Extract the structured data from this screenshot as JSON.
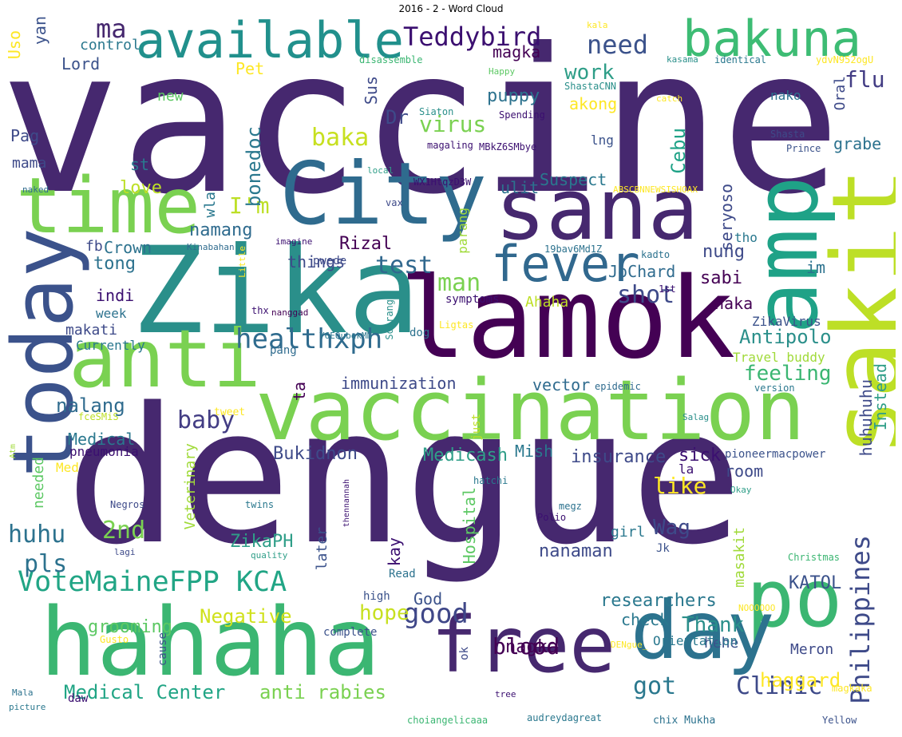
{
  "title": "2016 - 2 - Word Cloud",
  "words": [
    {
      "text": "vaccine",
      "color": "#46286f"
    },
    {
      "text": "dengue",
      "color": "#46286f"
    },
    {
      "text": "lamok",
      "color": "#440154"
    },
    {
      "text": "Zika",
      "color": "#2a8f8a"
    },
    {
      "text": "hahaha",
      "color": "#3bb672"
    },
    {
      "text": "vaccination",
      "color": "#7ad151"
    },
    {
      "text": "City",
      "color": "#2f6b8e"
    },
    {
      "text": "sana",
      "color": "#46286f"
    },
    {
      "text": "sakit",
      "color": "#bddf26"
    },
    {
      "text": "anti",
      "color": "#7ad151"
    },
    {
      "text": "time",
      "color": "#7ad151"
    },
    {
      "text": "today",
      "color": "#3b528b"
    },
    {
      "text": "amp",
      "color": "#1fa287"
    },
    {
      "text": "po",
      "color": "#3bb672"
    },
    {
      "text": "day",
      "color": "#2c728e"
    },
    {
      "text": "free",
      "color": "#46286f"
    },
    {
      "text": "available",
      "color": "#21908c"
    },
    {
      "text": "bakuna",
      "color": "#3dbc74"
    },
    {
      "text": "fever",
      "color": "#31688e"
    },
    {
      "text": "healthxph",
      "color": "#2f6b8e"
    },
    {
      "text": "VoteMaineFPP KCA",
      "color": "#21a585"
    },
    {
      "text": "Teddybird",
      "color": "#3b0f70"
    },
    {
      "text": "Clinic",
      "color": "#3e4a89"
    },
    {
      "text": "Philippines",
      "color": "#3e4a89"
    },
    {
      "text": "good",
      "color": "#3f4788"
    },
    {
      "text": "got",
      "color": "#2a788e"
    },
    {
      "text": "baby",
      "color": "#433d84"
    },
    {
      "text": "test",
      "color": "#31688e"
    },
    {
      "text": "need",
      "color": "#3b528b"
    },
    {
      "text": "work",
      "color": "#2f9e88"
    },
    {
      "text": "virus",
      "color": "#7ad151"
    },
    {
      "text": "blood",
      "color": "#440154"
    },
    {
      "text": "Medical Center",
      "color": "#21a585"
    },
    {
      "text": "anti rabies",
      "color": "#7ad151"
    },
    {
      "text": "Negative",
      "color": "#d0e11c"
    },
    {
      "text": "Thank",
      "color": "#2a8f8a"
    },
    {
      "text": "ma",
      "color": "#46286f"
    },
    {
      "text": "flu",
      "color": "#433d84"
    },
    {
      "text": "baka",
      "color": "#c7e020"
    },
    {
      "text": "man",
      "color": "#7ad151"
    },
    {
      "text": "shot",
      "color": "#3e4a89"
    },
    {
      "text": "hope",
      "color": "#c7e020"
    },
    {
      "text": "2nd",
      "color": "#7ad151"
    },
    {
      "text": "huhu",
      "color": "#2c728e"
    },
    {
      "text": "pls",
      "color": "#2c728e"
    },
    {
      "text": "Wag",
      "color": "#3e4a89"
    },
    {
      "text": "like",
      "color": "#fde725"
    },
    {
      "text": "Antipolo",
      "color": "#2a8f8a"
    },
    {
      "text": "feeling",
      "color": "#3bb672"
    },
    {
      "text": "haggard",
      "color": "#fde725"
    },
    {
      "text": "I'm",
      "color": "#bddf26"
    },
    {
      "text": "sabi",
      "color": "#440154"
    },
    {
      "text": "puppy",
      "color": "#2c728e"
    },
    {
      "text": "nung",
      "color": "#3e4a89"
    },
    {
      "text": "nalang",
      "color": "#2f6b8e"
    },
    {
      "text": "Rizal",
      "color": "#440154"
    },
    {
      "text": "Crown",
      "color": "#2c728e"
    },
    {
      "text": "tong",
      "color": "#2c728e"
    },
    {
      "text": "namang",
      "color": "#2f6b8e"
    },
    {
      "text": "nagka",
      "color": "#440154"
    },
    {
      "text": "grabe",
      "color": "#2c728e"
    },
    {
      "text": "Cebu",
      "color": "#1fa287"
    },
    {
      "text": "bonedoc",
      "color": "#2a788e"
    },
    {
      "text": "researchers",
      "color": "#2a788e"
    },
    {
      "text": "KATOL",
      "color": "#3b528b"
    },
    {
      "text": "check",
      "color": "#2a788e"
    },
    {
      "text": "Medicash",
      "color": "#2f9e88"
    },
    {
      "text": "insurance",
      "color": "#3e4a89"
    },
    {
      "text": "sick",
      "color": "#3b0f70"
    },
    {
      "text": "Bukidnon",
      "color": "#3e4a89"
    },
    {
      "text": "grooming",
      "color": "#5cc863"
    },
    {
      "text": "nanaman",
      "color": "#3e4a89"
    },
    {
      "text": "ZikaPH",
      "color": "#2f9e88"
    },
    {
      "text": "God",
      "color": "#3b528b"
    },
    {
      "text": "Mish",
      "color": "#2a788e"
    },
    {
      "text": "Medical",
      "color": "#2a788e"
    },
    {
      "text": "Dr",
      "color": "#3e4a89"
    },
    {
      "text": "ulit",
      "color": "#2c728e"
    },
    {
      "text": "Suspect",
      "color": "#2a788e"
    },
    {
      "text": "love",
      "color": "#bddf26"
    },
    {
      "text": "JoChard",
      "color": "#2f6b8e"
    },
    {
      "text": "things",
      "color": "#3e4a89"
    },
    {
      "text": "immunization",
      "color": "#3e4a89"
    },
    {
      "text": "vector",
      "color": "#2f6b8e"
    },
    {
      "text": "akong",
      "color": "#fde725"
    },
    {
      "text": "Ahaha",
      "color": "#bddf26"
    },
    {
      "text": "masakit",
      "color": "#a0da39"
    },
    {
      "text": "Instead",
      "color": "#2f9e88"
    },
    {
      "text": "huhuhuhu",
      "color": "#3e4a89"
    },
    {
      "text": "room",
      "color": "#3e4a89"
    },
    {
      "text": "hehe",
      "color": "#3b528b"
    },
    {
      "text": "Hospital",
      "color": "#5cc863"
    },
    {
      "text": "kay",
      "color": "#3b0f70"
    },
    {
      "text": "Veterinary",
      "color": "#a0da39"
    },
    {
      "text": "needed",
      "color": "#5cc863"
    },
    {
      "text": "later",
      "color": "#3b528b"
    },
    {
      "text": "girl",
      "color": "#2a788e"
    },
    {
      "text": "Meron",
      "color": "#3e4a89"
    },
    {
      "text": "Orientation",
      "color": "#2a788e"
    },
    {
      "text": "magka",
      "color": "#440154"
    },
    {
      "text": "control",
      "color": "#2a788e"
    },
    {
      "text": "Lord",
      "color": "#3b528b"
    },
    {
      "text": "new",
      "color": "#5cc863"
    },
    {
      "text": "Pag",
      "color": "#3e4a89"
    },
    {
      "text": "mama",
      "color": "#3e4a89"
    },
    {
      "text": "st",
      "color": "#2a788e"
    },
    {
      "text": "Pet",
      "color": "#fde725"
    },
    {
      "text": "yan",
      "color": "#3b528b"
    },
    {
      "text": "Uso",
      "color": "#fde725"
    },
    {
      "text": "Sus",
      "color": "#3e4a89"
    },
    {
      "text": "wla",
      "color": "#2a788e"
    },
    {
      "text": "fb",
      "color": "#3e4a89"
    },
    {
      "text": "indi",
      "color": "#3b0f70"
    },
    {
      "text": "makati",
      "color": "#3e4a89"
    },
    {
      "text": "week",
      "color": "#2c728e"
    },
    {
      "text": "Currently",
      "color": "#2a788e"
    },
    {
      "text": "ta",
      "color": "#440154"
    },
    {
      "text": "pneumonia",
      "color": "#3b0f70"
    },
    {
      "text": "Med",
      "color": "#fde725"
    },
    {
      "text": "parang",
      "color": "#a0da39"
    },
    {
      "text": "seryoso",
      "color": "#3e4a89"
    },
    {
      "text": "tho",
      "color": "#2a788e"
    },
    {
      "text": "im",
      "color": "#2c728e"
    },
    {
      "text": "naka",
      "color": "#440154"
    },
    {
      "text": "ZikaVirus",
      "color": "#3b528b"
    },
    {
      "text": "Travel buddy",
      "color": "#a0da39"
    },
    {
      "text": "Oral",
      "color": "#3e4a89"
    },
    {
      "text": "nako",
      "color": "#2c728e"
    },
    {
      "text": "lng",
      "color": "#3b528b"
    },
    {
      "text": "la",
      "color": "#3b0f70"
    },
    {
      "text": "pioneermacpower",
      "color": "#3b528b"
    },
    {
      "text": "epidemic",
      "color": "#2f6b8e"
    },
    {
      "text": "version",
      "color": "#2a788e"
    },
    {
      "text": "symptoms",
      "color": "#3b0f70"
    },
    {
      "text": "pwede",
      "color": "#3e4a89"
    },
    {
      "text": "Siaton",
      "color": "#2a8f8a"
    },
    {
      "text": "Spending",
      "color": "#3b0f70"
    },
    {
      "text": "magaling",
      "color": "#3b0f70"
    },
    {
      "text": "MBkZ6SMbye",
      "color": "#3b0f70"
    },
    {
      "text": "WX1HtqzD3W",
      "color": "#3b0f70"
    },
    {
      "text": "ABSCBNNEWSISHOAX",
      "color": "#fde725"
    },
    {
      "text": "vax",
      "color": "#3e4a89"
    },
    {
      "text": "imagine",
      "color": "#3b0f70"
    },
    {
      "text": "Kinabahan",
      "color": "#2f6b8e"
    },
    {
      "text": "19bav6Md1Z",
      "color": "#2c728e"
    },
    {
      "text": "kadto",
      "color": "#2c728e"
    },
    {
      "text": "1st",
      "color": "#3b0f70"
    },
    {
      "text": "thx",
      "color": "#3b0f70"
    },
    {
      "text": "nanggad",
      "color": "#440154"
    },
    {
      "text": "Y6EQubekMN",
      "color": "#2a788e"
    },
    {
      "text": "Ligtas",
      "color": "#fde725"
    },
    {
      "text": "Sobrang",
      "color": "#2a8f8a"
    },
    {
      "text": "dog",
      "color": "#2c728e"
    },
    {
      "text": "pang",
      "color": "#2f6b8e"
    },
    {
      "text": "just",
      "color": "#bddf26"
    },
    {
      "text": "tweet",
      "color": "#fde725"
    },
    {
      "text": "Atm",
      "color": "#a0da39"
    },
    {
      "text": "fceSMiS",
      "color": "#bddf26"
    },
    {
      "text": "Salag",
      "color": "#2a8f8a"
    },
    {
      "text": "Little",
      "color": "#fde725"
    },
    {
      "text": "hatchi",
      "color": "#2a788e"
    },
    {
      "text": "megz",
      "color": "#2c728e"
    },
    {
      "text": "twins",
      "color": "#2a788e"
    },
    {
      "text": "Negros",
      "color": "#3e4a89"
    },
    {
      "text": "thennannah",
      "color": "#3b0f70"
    },
    {
      "text": "Polio",
      "color": "#3b0f70"
    },
    {
      "text": "lagi",
      "color": "#3e4a89"
    },
    {
      "text": "quality",
      "color": "#2f9e88"
    },
    {
      "text": "Read",
      "color": "#2c728e"
    },
    {
      "text": "high",
      "color": "#3b528b"
    },
    {
      "text": "complete",
      "color": "#3b528b"
    },
    {
      "text": "ok",
      "color": "#3e4a89"
    },
    {
      "text": "cause",
      "color": "#3b528b"
    },
    {
      "text": "Gusto",
      "color": "#fde725"
    },
    {
      "text": "daw",
      "color": "#3b0f70"
    },
    {
      "text": "Mala",
      "color": "#2c728e"
    },
    {
      "text": "picture",
      "color": "#2a788e"
    },
    {
      "text": "tree",
      "color": "#3b0f70"
    },
    {
      "text": "choiangelicaaa",
      "color": "#3bb672"
    },
    {
      "text": "audreydagreat",
      "color": "#2a788e"
    },
    {
      "text": "DENgue_",
      "color": "#fde725"
    },
    {
      "text": "NOOOOOO",
      "color": "#fde725"
    },
    {
      "text": "Jk",
      "color": "#3b528b"
    },
    {
      "text": "Christmas",
      "color": "#3bb672"
    },
    {
      "text": "Okay",
      "color": "#2f9e88"
    },
    {
      "text": "chix Mukha",
      "color": "#2c728e"
    },
    {
      "text": "magkaka",
      "color": "#fde725"
    },
    {
      "text": "Yellow",
      "color": "#3b528b"
    },
    {
      "text": "kala",
      "color": "#fde725"
    },
    {
      "text": "kasama",
      "color": "#2a8f8a"
    },
    {
      "text": "identical",
      "color": "#2a788e"
    },
    {
      "text": "ydvN952ogU",
      "color": "#fde725"
    },
    {
      "text": "disassemble",
      "color": "#3bb672"
    },
    {
      "text": "Happy",
      "color": "#5cc863"
    },
    {
      "text": "ShastaCNN",
      "color": "#2a8f8a"
    },
    {
      "text": "catch",
      "color": "#fde725"
    },
    {
      "text": "Shasta",
      "color": "#3e4a89"
    },
    {
      "text": "Prince",
      "color": "#3b528b"
    },
    {
      "text": "local",
      "color": "#2f9e88"
    },
    {
      "text": "naked",
      "color": "#2f6b8e"
    }
  ]
}
